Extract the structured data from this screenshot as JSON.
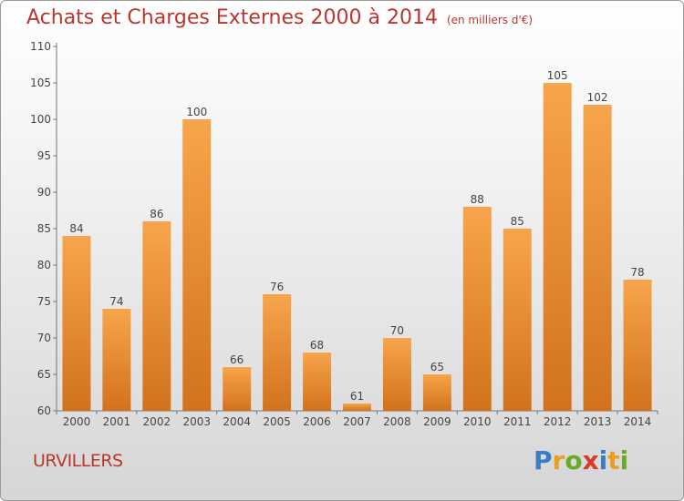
{
  "title": "Achats et Charges Externes 2000 à 2014",
  "unit_note": "(en milliers d'€)",
  "commune": "URVILLERS",
  "logo": {
    "text": "Proxiti",
    "letters": [
      {
        "ch": "P",
        "color": "#3b7dc4"
      },
      {
        "ch": "r",
        "color": "#e8a020"
      },
      {
        "ch": "o",
        "color": "#6aaa2a"
      },
      {
        "ch": "x",
        "color": "#d83a2a"
      },
      {
        "ch": "i",
        "color": "#3b7dc4"
      },
      {
        "ch": "t",
        "color": "#e8a020"
      },
      {
        "ch": "i",
        "color": "#6aaa2a"
      }
    ]
  },
  "chart_data": {
    "type": "bar",
    "categories": [
      "2000",
      "2001",
      "2002",
      "2003",
      "2004",
      "2005",
      "2006",
      "2007",
      "2008",
      "2009",
      "2010",
      "2011",
      "2012",
      "2013",
      "2014"
    ],
    "values": [
      84,
      74,
      86,
      100,
      66,
      76,
      68,
      61,
      70,
      65,
      88,
      85,
      105,
      102,
      78
    ],
    "ylim": [
      60,
      110
    ],
    "yticks": [
      60,
      65,
      70,
      75,
      80,
      85,
      90,
      95,
      100,
      105,
      110
    ],
    "grid": false,
    "bar_color_light": "#f7a54c",
    "bar_color_dark": "#d2721c"
  }
}
